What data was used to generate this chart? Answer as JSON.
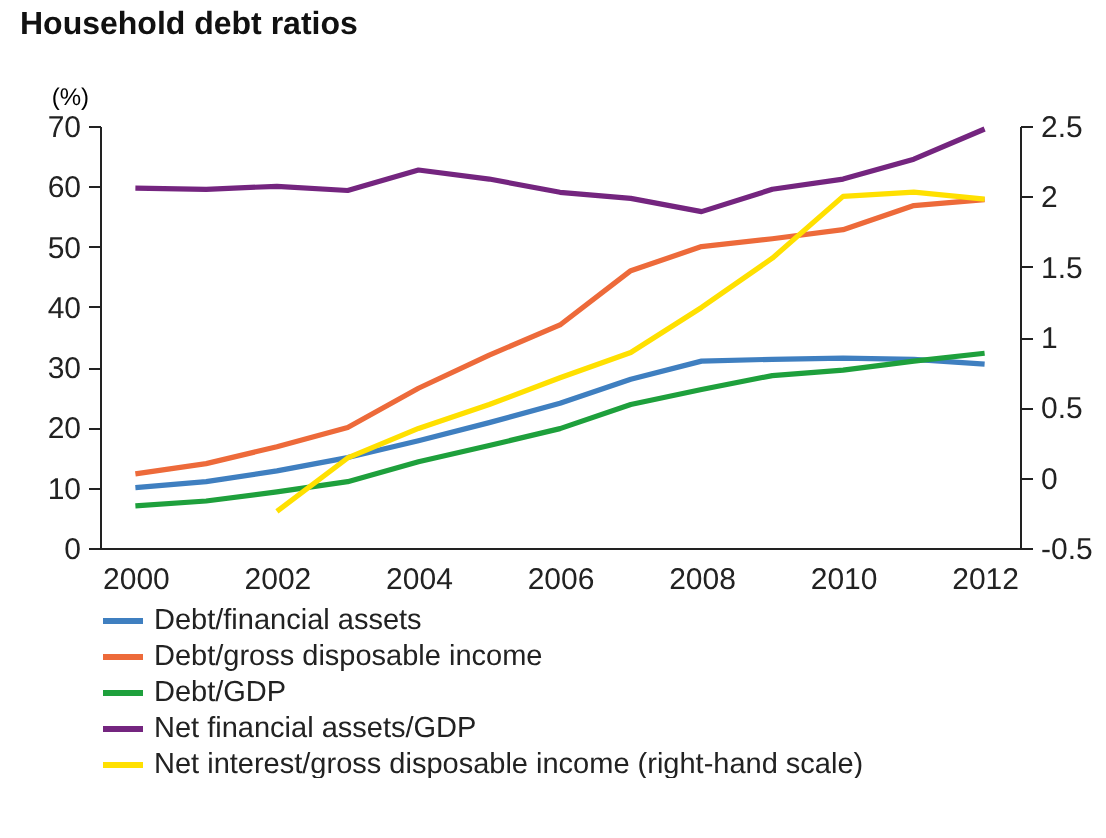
{
  "chart_data": {
    "type": "line",
    "title": "Household debt ratios",
    "ylabel": "(%)",
    "x": [
      2000,
      2001,
      2002,
      2003,
      2004,
      2005,
      2006,
      2007,
      2008,
      2009,
      2010,
      2011,
      2012
    ],
    "xlim": [
      1999.5,
      2012.5
    ],
    "xticks": [
      2000,
      2002,
      2004,
      2006,
      2008,
      2010,
      2012
    ],
    "ylim": [
      0,
      70
    ],
    "yticks": [
      0,
      10,
      20,
      30,
      40,
      50,
      60,
      70
    ],
    "y2lim": [
      -0.5,
      2.5
    ],
    "y2ticks": [
      -0.5,
      0,
      0.5,
      1,
      1.5,
      2,
      2.5
    ],
    "grid": false,
    "legend": "bottom",
    "line_style": "solid",
    "marker": "none",
    "series": [
      {
        "name": "Debt/financial assets",
        "color": "#3f7fc0",
        "values": [
          10,
          11,
          12.8,
          15,
          17.8,
          20.8,
          24,
          28,
          31,
          31.3,
          31.5,
          31.3,
          30.5
        ]
      },
      {
        "name": "Debt/gross disposable income",
        "color": "#ed6a3a",
        "values": [
          12.3,
          14,
          16.8,
          20,
          26.5,
          32,
          37,
          46,
          50,
          51.3,
          52.8,
          56.8,
          57.8
        ]
      },
      {
        "name": "Debt/GDP",
        "color": "#1ea03c",
        "values": [
          7,
          7.8,
          9.3,
          11,
          14.3,
          17,
          19.8,
          23.8,
          26.3,
          28.6,
          29.5,
          31,
          32.3
        ]
      },
      {
        "name": "Net financial assets/GDP",
        "color": "#74257f",
        "values": [
          59.7,
          59.5,
          60,
          59.3,
          62.7,
          61.2,
          59,
          58,
          55.8,
          59.5,
          61.2,
          64.5,
          69.5
        ]
      },
      {
        "name": "Net interest/gross disposable income (right-hand scale)",
        "color": "#ffe000",
        "axis": "y2",
        "values": [
          null,
          null,
          -0.24,
          0.14,
          0.35,
          0.52,
          0.71,
          0.89,
          1.21,
          1.56,
          2.0,
          2.03,
          1.98
        ]
      }
    ]
  }
}
